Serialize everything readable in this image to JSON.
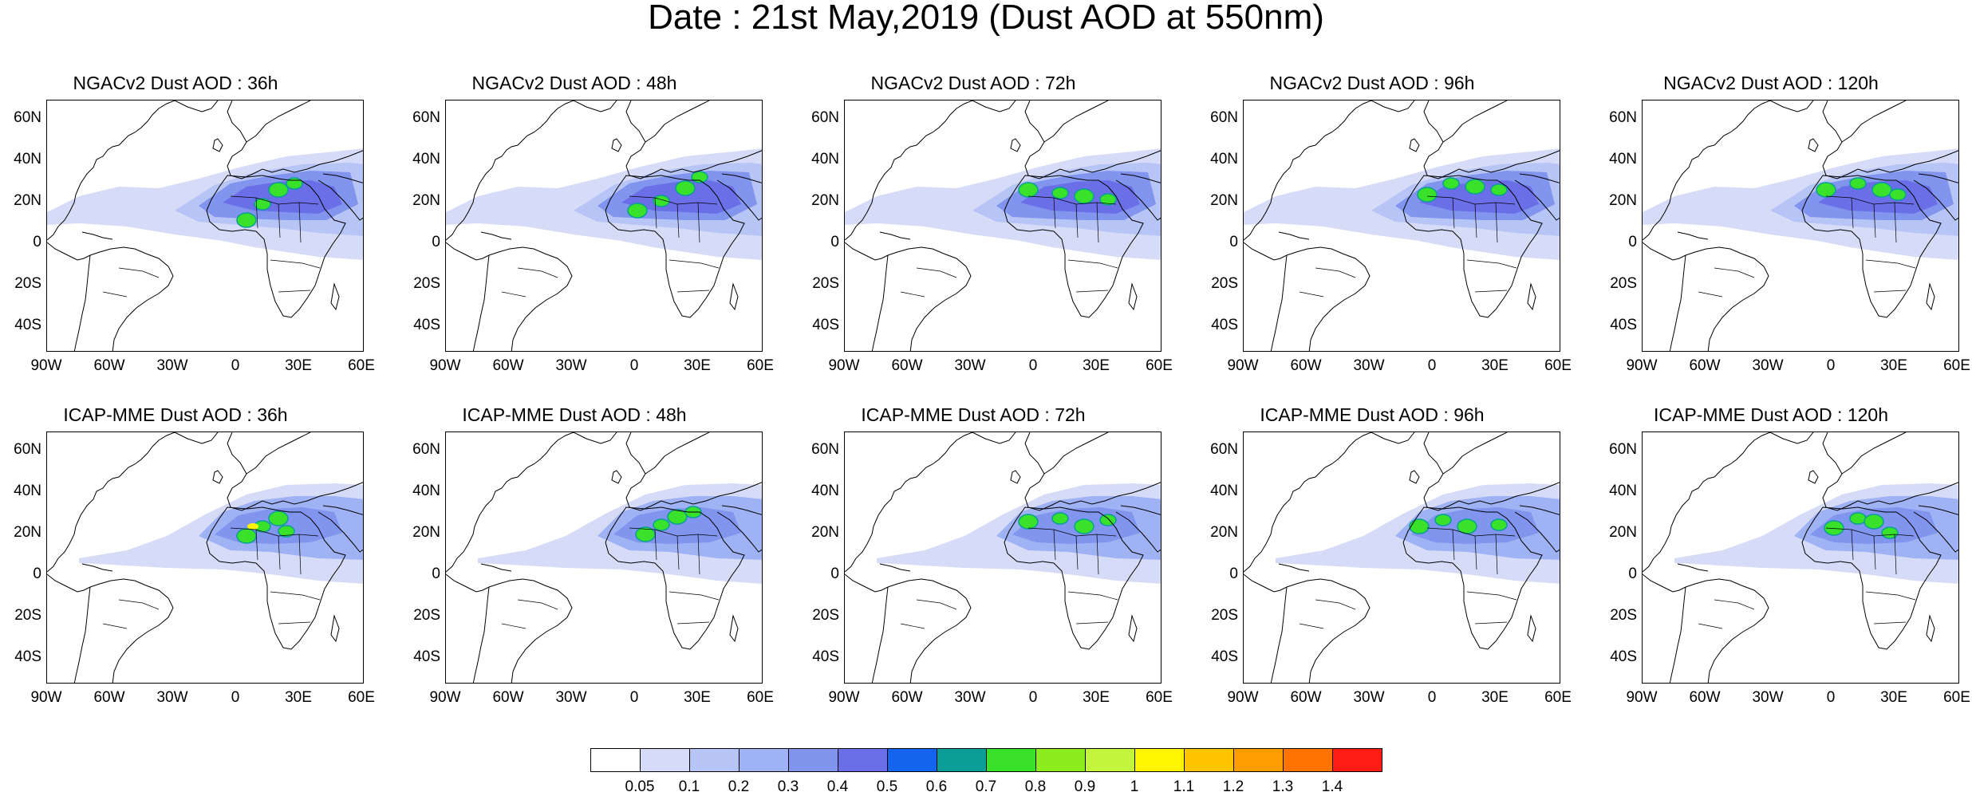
{
  "title": "Date : 21st May,2019 (Dust AOD at 550nm)",
  "lat_labels": [
    "60N",
    "40N",
    "20N",
    "0",
    "20S",
    "40S"
  ],
  "lon_labels": [
    "90W",
    "60W",
    "30W",
    "0",
    "30E",
    "60E"
  ],
  "map_extent": {
    "lon": [
      -90,
      60
    ],
    "lat": [
      -50,
      70
    ]
  },
  "panels": [
    {
      "title": "NGACv2 Dust AOD : 36h",
      "model": "NGACv2",
      "lead": "36h"
    },
    {
      "title": "NGACv2 Dust AOD : 48h",
      "model": "NGACv2",
      "lead": "48h"
    },
    {
      "title": "NGACv2 Dust AOD : 72h",
      "model": "NGACv2",
      "lead": "72h"
    },
    {
      "title": "NGACv2 Dust AOD : 96h",
      "model": "NGACv2",
      "lead": "96h"
    },
    {
      "title": "NGACv2 Dust AOD : 120h",
      "model": "NGACv2",
      "lead": "120h"
    },
    {
      "title": "ICAP-MME Dust AOD : 36h",
      "model": "ICAP-MME",
      "lead": "36h"
    },
    {
      "title": "ICAP-MME Dust AOD : 48h",
      "model": "ICAP-MME",
      "lead": "48h"
    },
    {
      "title": "ICAP-MME Dust AOD : 72h",
      "model": "ICAP-MME",
      "lead": "72h"
    },
    {
      "title": "ICAP-MME Dust AOD : 96h",
      "model": "ICAP-MME",
      "lead": "96h"
    },
    {
      "title": "ICAP-MME Dust AOD : 120h",
      "model": "ICAP-MME",
      "lead": "120h"
    }
  ],
  "colorbar": {
    "labels": [
      "0.05",
      "0.1",
      "0.2",
      "0.3",
      "0.4",
      "0.5",
      "0.6",
      "0.7",
      "0.8",
      "0.9",
      "1",
      "1.1",
      "1.2",
      "1.3",
      "1.4"
    ],
    "colors": [
      "#ffffff",
      "#d6dcf8",
      "#b7c4f6",
      "#9fb2f3",
      "#8194ee",
      "#6a6fe8",
      "#1464f0",
      "#0b9e96",
      "#3ae12a",
      "#8ced1e",
      "#c2f53c",
      "#fff500",
      "#ffc500",
      "#ff9d00",
      "#ff7400",
      "#fe1c14"
    ]
  }
}
